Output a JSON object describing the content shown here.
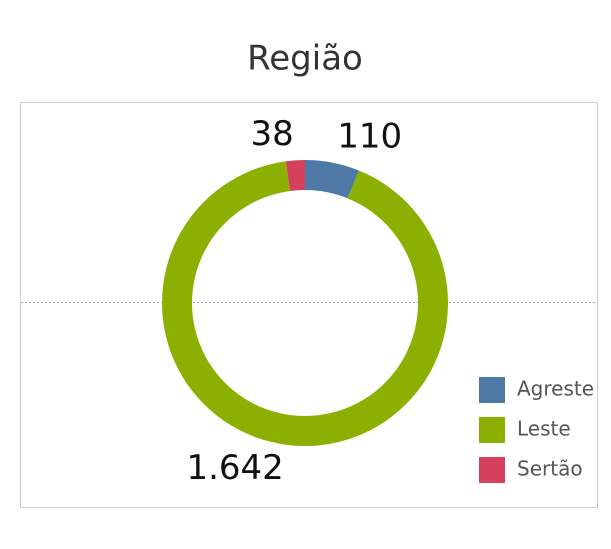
{
  "chart_data": {
    "type": "donut",
    "title": "Região",
    "categories": [
      "Agreste",
      "Leste",
      "Sertão"
    ],
    "values": [
      110,
      1642,
      38
    ],
    "value_labels": [
      "110",
      "1.642",
      "38"
    ],
    "colors": [
      "#4e79a7",
      "#8cb000",
      "#d5405c"
    ]
  }
}
